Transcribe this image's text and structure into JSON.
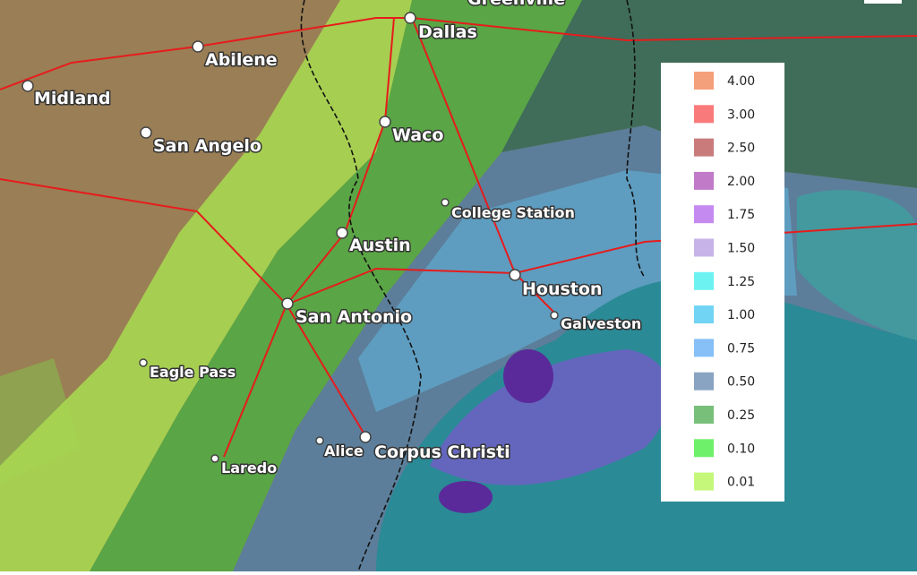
{
  "cities": [
    "Greenville",
    "Dallas",
    "Abilene",
    "Midland",
    "San Angelo",
    "Waco",
    "College Station",
    "Austin",
    "Houston",
    "Galveston",
    "San Antonio",
    "Eagle Pass",
    "Alice",
    "Corpus Christi",
    "Laredo"
  ],
  "legend": {
    "items": [
      {
        "label": "4.00",
        "color": "#f4a07a"
      },
      {
        "label": "3.00",
        "color": "#f97a7a"
      },
      {
        "label": "2.50",
        "color": "#c97b7b"
      },
      {
        "label": "2.00",
        "color": "#c07ac8"
      },
      {
        "label": "1.75",
        "color": "#c58af0"
      },
      {
        "label": "1.50",
        "color": "#c7b3e8"
      },
      {
        "label": "1.25",
        "color": "#6df2f2"
      },
      {
        "label": "1.00",
        "color": "#72d4f5"
      },
      {
        "label": "0.75",
        "color": "#86c0f7"
      },
      {
        "label": "0.50",
        "color": "#89a4c2"
      },
      {
        "label": "0.25",
        "color": "#78c07a"
      },
      {
        "label": "0.10",
        "color": "#6ff06a"
      },
      {
        "label": "0.01",
        "color": "#c5f87a"
      }
    ]
  }
}
